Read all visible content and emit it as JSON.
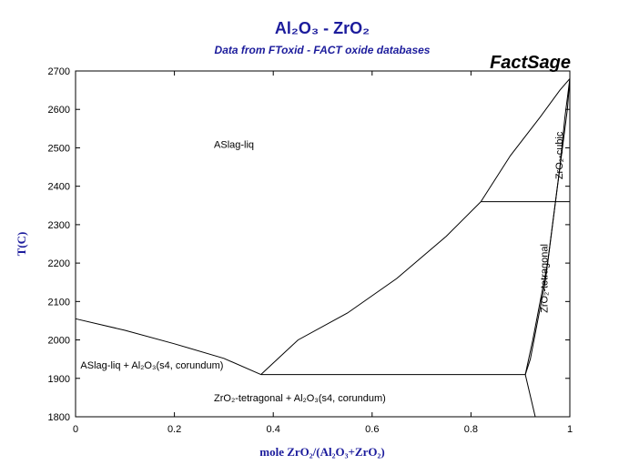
{
  "chart_data": {
    "type": "line",
    "title": "Al₂O₃ - ZrO₂",
    "subtitle": "Data from FToxid - FACT oxide databases",
    "brand": "FactSage",
    "xlabel": "mole ZrO₂/(Al₂O₃+ZrO₂)",
    "ylabel": "T(C)",
    "xlim": [
      0,
      1
    ],
    "ylim": [
      1800,
      2700
    ],
    "x_ticks": [
      "0",
      "0.2",
      "0.4",
      "0.6",
      "0.8",
      "1"
    ],
    "x_tick_values": [
      0,
      0.2,
      0.4,
      0.6,
      0.8,
      1
    ],
    "y_ticks": [
      "1800",
      "1900",
      "2000",
      "2100",
      "2200",
      "2300",
      "2400",
      "2500",
      "2600",
      "2700"
    ],
    "y_tick_values": [
      1800,
      1900,
      2000,
      2100,
      2200,
      2300,
      2400,
      2500,
      2600,
      2700
    ],
    "grid": false,
    "series": [
      {
        "x": [
          0,
          0.1,
          0.2,
          0.3,
          0.375
        ],
        "y": [
          2055,
          2025,
          1990,
          1952,
          1910
        ]
      },
      {
        "x": [
          0.375,
          0.45,
          0.55,
          0.65,
          0.75,
          0.82
        ],
        "y": [
          1910,
          2000,
          2070,
          2160,
          2270,
          2360
        ]
      },
      {
        "x": [
          0.82,
          0.88,
          0.94,
          0.98,
          1.0
        ],
        "y": [
          2360,
          2480,
          2580,
          2650,
          2680
        ]
      },
      {
        "x": [
          0.91,
          0.925,
          0.94,
          0.955,
          0.965,
          0.975,
          0.985,
          0.995,
          1.0
        ],
        "y": [
          1910,
          2000,
          2100,
          2200,
          2300,
          2400,
          2500,
          2600,
          2680
        ]
      },
      {
        "x": [
          0.91,
          0.92,
          0.935,
          0.95,
          0.965,
          0.98,
          0.99,
          1.0
        ],
        "y": [
          1910,
          1950,
          2050,
          2150,
          2300,
          2450,
          2580,
          2680
        ]
      },
      {
        "x": [
          0.91,
          0.93
        ],
        "y": [
          1910,
          1800
        ]
      },
      {
        "x": [
          0.375,
          0.91
        ],
        "y": [
          1910,
          1910
        ]
      },
      {
        "x": [
          0.82,
          1.0
        ],
        "y": [
          2360,
          2360
        ]
      }
    ],
    "annotations": [
      {
        "text": "ASlag-liq",
        "x": 0.28,
        "y": 2500
      },
      {
        "text": "ASlag-liq + Al₂O₃(s4, corundum)",
        "x": 0.01,
        "y": 1925
      },
      {
        "text": "ZrO₂-tetragonal + Al₂O₃(s4, corundum)",
        "x": 0.28,
        "y": 1840
      },
      {
        "text": "ZrO₂-cubic",
        "x": 0.985,
        "y": 2480,
        "rotate": -90
      },
      {
        "text": "ZrO₂-tetragonal",
        "x": 0.955,
        "y": 2160,
        "rotate": -90
      }
    ]
  }
}
